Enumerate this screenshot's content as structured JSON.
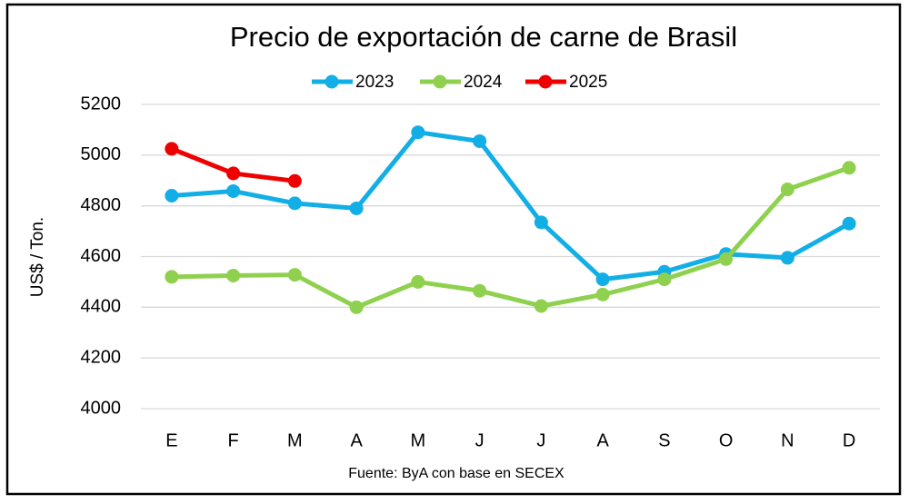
{
  "chart_data": {
    "type": "line",
    "title": "Precio de exportación de carne de Brasil",
    "y_label": "US$ / Ton.",
    "source": "Fuente: ByA con base en SECEX",
    "categories": [
      "E",
      "F",
      "M",
      "A",
      "M",
      "J",
      "J",
      "A",
      "S",
      "O",
      "N",
      "D"
    ],
    "series": [
      {
        "name": "2023",
        "color": "#12aee6",
        "values": [
          4840,
          4858,
          4810,
          4790,
          5090,
          5055,
          4735,
          4510,
          4540,
          4610,
          4595,
          4730
        ]
      },
      {
        "name": "2024",
        "color": "#8fd14f",
        "values": [
          4520,
          4525,
          4528,
          4400,
          4500,
          4465,
          4405,
          4450,
          4510,
          4590,
          4865,
          4950
        ]
      },
      {
        "name": "2025",
        "color": "#ee0000",
        "values": [
          5025,
          4928,
          4898,
          null,
          null,
          null,
          null,
          null,
          null,
          null,
          null,
          null
        ]
      }
    ],
    "ylim": [
      4000,
      5200
    ],
    "yticks": [
      4000,
      4200,
      4400,
      4600,
      4800,
      5000,
      5200
    ],
    "grid": true
  }
}
